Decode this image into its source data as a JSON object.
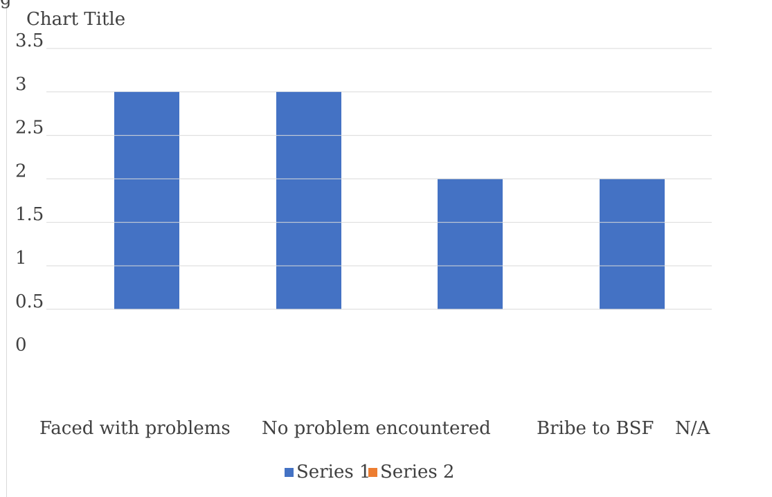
{
  "chart_data": {
    "type": "bar",
    "title": "Chart Title",
    "categories": [
      "Faced with problems",
      "No problem encountered",
      "Bribe to BSF",
      "N/A"
    ],
    "series": [
      {
        "name": "Series 1",
        "values": [
          3,
          3,
          2,
          2
        ]
      },
      {
        "name": "Series 2",
        "values": [
          0,
          0,
          0,
          0
        ]
      }
    ],
    "y_ticks": [
      "0",
      "0.5",
      "1",
      "1.5",
      "2",
      "2.5",
      "3",
      "3.5"
    ],
    "ylim": [
      0,
      3.5
    ],
    "grid": true,
    "legend_position": "bottom",
    "colors": {
      "series1": "#4472c4",
      "series2": "#ed7d31",
      "grid": "#d9d9d9",
      "text": "#404040"
    }
  }
}
